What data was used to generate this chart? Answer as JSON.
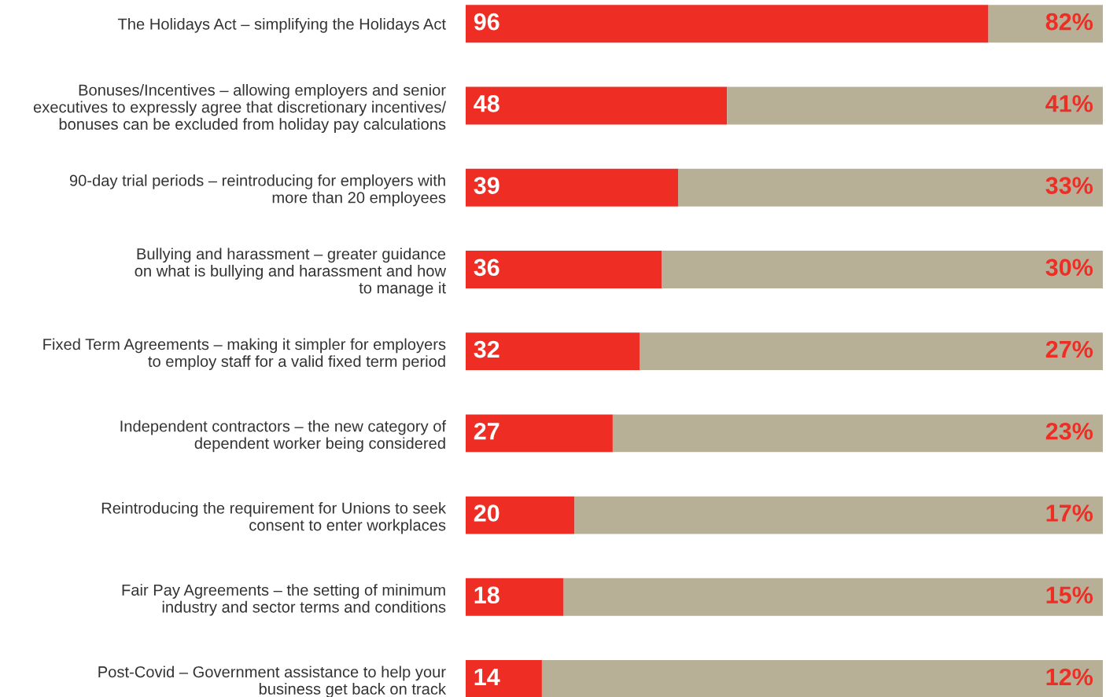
{
  "chart_data": {
    "type": "bar",
    "orientation": "horizontal",
    "stacked": true,
    "xlim": [
      0,
      117
    ],
    "tick_labels": "y",
    "categories": [
      "The Holidays Act – simplifying the Holidays Act",
      "Bonuses/Incentives – allowing employers and senior\nexecutives to expressly agree that discretionary incentives/\nbonuses can be excluded from holiday pay calculations",
      "90-day trial periods – reintroducing for employers with\nmore than 20 employees",
      "Bullying and harassment – greater guidance\non what is bullying and harassment and how\nto manage it",
      "Fixed Term Agreements – making it simpler for employers\nto employ staff for a valid fixed term period",
      "Independent contractors – the new category of\ndependent worker being considered",
      "Reintroducing the requirement for Unions to seek\nconsent to enter workplaces",
      "Fair Pay Agreements – the setting of minimum\nindustry and sector terms and conditions",
      "Post-Covid – Government assistance to help your\nbusiness get back on track"
    ],
    "series": [
      {
        "color": "#ee2e24",
        "values": [
          96,
          48,
          39,
          36,
          32,
          27,
          20,
          18,
          14
        ],
        "value_labels": [
          "96",
          "48",
          "39",
          "36",
          "32",
          "27",
          "20",
          "18",
          "14"
        ]
      },
      {
        "color": "#b8af97",
        "values": [
          21,
          69,
          78,
          81,
          85,
          90,
          97,
          99,
          103
        ]
      }
    ],
    "annotations": [
      "82%",
      "41%",
      "33%",
      "30%",
      "27%",
      "23%",
      "17%",
      "15%",
      "12%"
    ]
  }
}
